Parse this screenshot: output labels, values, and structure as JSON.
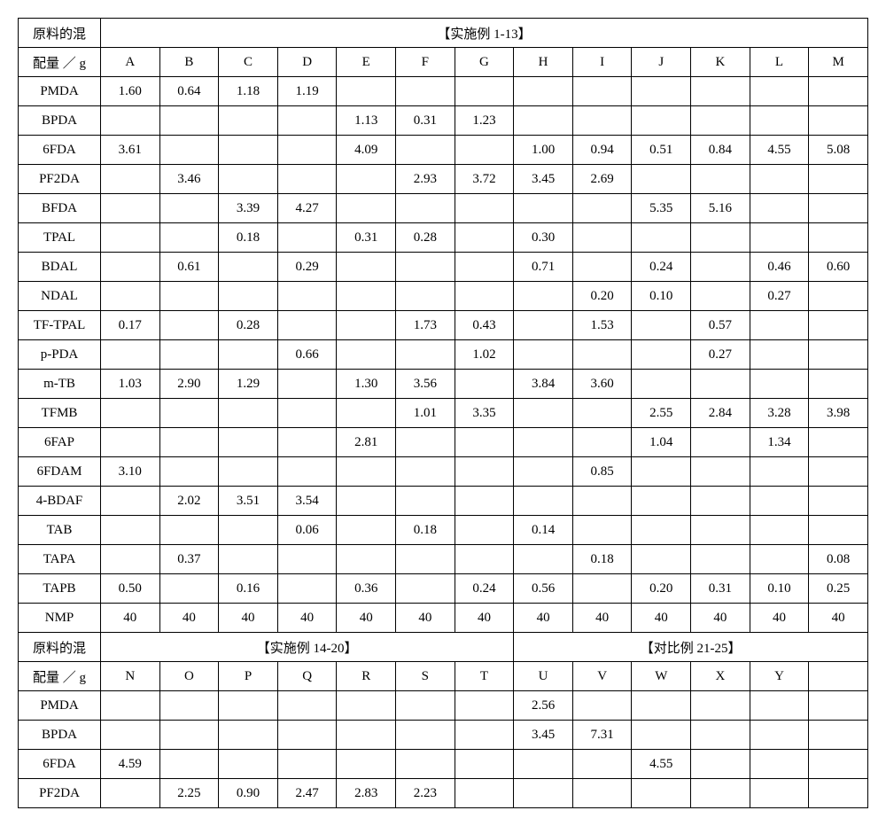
{
  "section1_title": "【实施例 1-13】",
  "section2a_title": "【实施例 14-20】",
  "section2b_title": "【对比例 21-25】",
  "rowhdr_label_l1": "原料的混",
  "rowhdr_label_l2": "配量 ／ g",
  "cols1": [
    "A",
    "B",
    "C",
    "D",
    "E",
    "F",
    "G",
    "H",
    "I",
    "J",
    "K",
    "L",
    "M"
  ],
  "cols2": [
    "N",
    "O",
    "P",
    "Q",
    "R",
    "S",
    "T",
    "U",
    "V",
    "W",
    "X",
    "Y",
    ""
  ],
  "rows1": [
    {
      "name": "PMDA",
      "v": [
        "1.60",
        "0.64",
        "1.18",
        "1.19",
        "",
        "",
        "",
        "",
        "",
        "",
        "",
        "",
        ""
      ]
    },
    {
      "name": "BPDA",
      "v": [
        "",
        "",
        "",
        "",
        "1.13",
        "0.31",
        "1.23",
        "",
        "",
        "",
        "",
        "",
        ""
      ]
    },
    {
      "name": "6FDA",
      "v": [
        "3.61",
        "",
        "",
        "",
        "4.09",
        "",
        "",
        "1.00",
        "0.94",
        "0.51",
        "0.84",
        "4.55",
        "5.08"
      ]
    },
    {
      "name": "PF2DA",
      "v": [
        "",
        "3.46",
        "",
        "",
        "",
        "2.93",
        "3.72",
        "3.45",
        "2.69",
        "",
        "",
        "",
        ""
      ]
    },
    {
      "name": "BFDA",
      "v": [
        "",
        "",
        "3.39",
        "4.27",
        "",
        "",
        "",
        "",
        "",
        "5.35",
        "5.16",
        "",
        ""
      ]
    },
    {
      "name": "TPAL",
      "v": [
        "",
        "",
        "0.18",
        "",
        "0.31",
        "0.28",
        "",
        "0.30",
        "",
        "",
        "",
        "",
        ""
      ]
    },
    {
      "name": "BDAL",
      "v": [
        "",
        "0.61",
        "",
        "0.29",
        "",
        "",
        "",
        "0.71",
        "",
        "0.24",
        "",
        "0.46",
        "0.60"
      ]
    },
    {
      "name": "NDAL",
      "v": [
        "",
        "",
        "",
        "",
        "",
        "",
        "",
        "",
        "0.20",
        "0.10",
        "",
        "0.27",
        ""
      ]
    },
    {
      "name": "TF-TPAL",
      "v": [
        "0.17",
        "",
        "0.28",
        "",
        "",
        "1.73",
        "0.43",
        "",
        "1.53",
        "",
        "0.57",
        "",
        ""
      ]
    },
    {
      "name": "p-PDA",
      "v": [
        "",
        "",
        "",
        "0.66",
        "",
        "",
        "1.02",
        "",
        "",
        "",
        "0.27",
        "",
        ""
      ]
    },
    {
      "name": "m-TB",
      "v": [
        "1.03",
        "2.90",
        "1.29",
        "",
        "1.30",
        "3.56",
        "",
        "3.84",
        "3.60",
        "",
        "",
        "",
        ""
      ]
    },
    {
      "name": "TFMB",
      "v": [
        "",
        "",
        "",
        "",
        "",
        "1.01",
        "3.35",
        "",
        "",
        "2.55",
        "2.84",
        "3.28",
        "3.98"
      ]
    },
    {
      "name": "6FAP",
      "v": [
        "",
        "",
        "",
        "",
        "2.81",
        "",
        "",
        "",
        "",
        "1.04",
        "",
        "1.34",
        ""
      ]
    },
    {
      "name": "6FDAM",
      "v": [
        "3.10",
        "",
        "",
        "",
        "",
        "",
        "",
        "",
        "0.85",
        "",
        "",
        "",
        ""
      ]
    },
    {
      "name": "4-BDAF",
      "v": [
        "",
        "2.02",
        "3.51",
        "3.54",
        "",
        "",
        "",
        "",
        "",
        "",
        "",
        "",
        ""
      ]
    },
    {
      "name": "TAB",
      "v": [
        "",
        "",
        "",
        "0.06",
        "",
        "0.18",
        "",
        "0.14",
        "",
        "",
        "",
        "",
        ""
      ]
    },
    {
      "name": "TAPA",
      "v": [
        "",
        "0.37",
        "",
        "",
        "",
        "",
        "",
        "",
        "0.18",
        "",
        "",
        "",
        "0.08"
      ]
    },
    {
      "name": "TAPB",
      "v": [
        "0.50",
        "",
        "0.16",
        "",
        "0.36",
        "",
        "0.24",
        "0.56",
        "",
        "0.20",
        "0.31",
        "0.10",
        "0.25"
      ]
    },
    {
      "name": "NMP",
      "v": [
        "40",
        "40",
        "40",
        "40",
        "40",
        "40",
        "40",
        "40",
        "40",
        "40",
        "40",
        "40",
        "40"
      ]
    }
  ],
  "rows2": [
    {
      "name": "PMDA",
      "v": [
        "",
        "",
        "",
        "",
        "",
        "",
        "",
        "2.56",
        "",
        "",
        "",
        "",
        ""
      ]
    },
    {
      "name": "BPDA",
      "v": [
        "",
        "",
        "",
        "",
        "",
        "",
        "",
        "3.45",
        "7.31",
        "",
        "",
        "",
        ""
      ]
    },
    {
      "name": "6FDA",
      "v": [
        "4.59",
        "",
        "",
        "",
        "",
        "",
        "",
        "",
        "",
        "4.55",
        "",
        "",
        ""
      ]
    },
    {
      "name": "PF2DA",
      "v": [
        "",
        "2.25",
        "0.90",
        "2.47",
        "2.83",
        "2.23",
        "",
        "",
        "",
        "",
        "",
        "",
        ""
      ]
    }
  ],
  "style": {
    "font_family": "Times New Roman, SimSun, serif",
    "font_size_pt": 11,
    "border_color": "#000000",
    "background_color": "#ffffff",
    "text_color": "#000000"
  }
}
